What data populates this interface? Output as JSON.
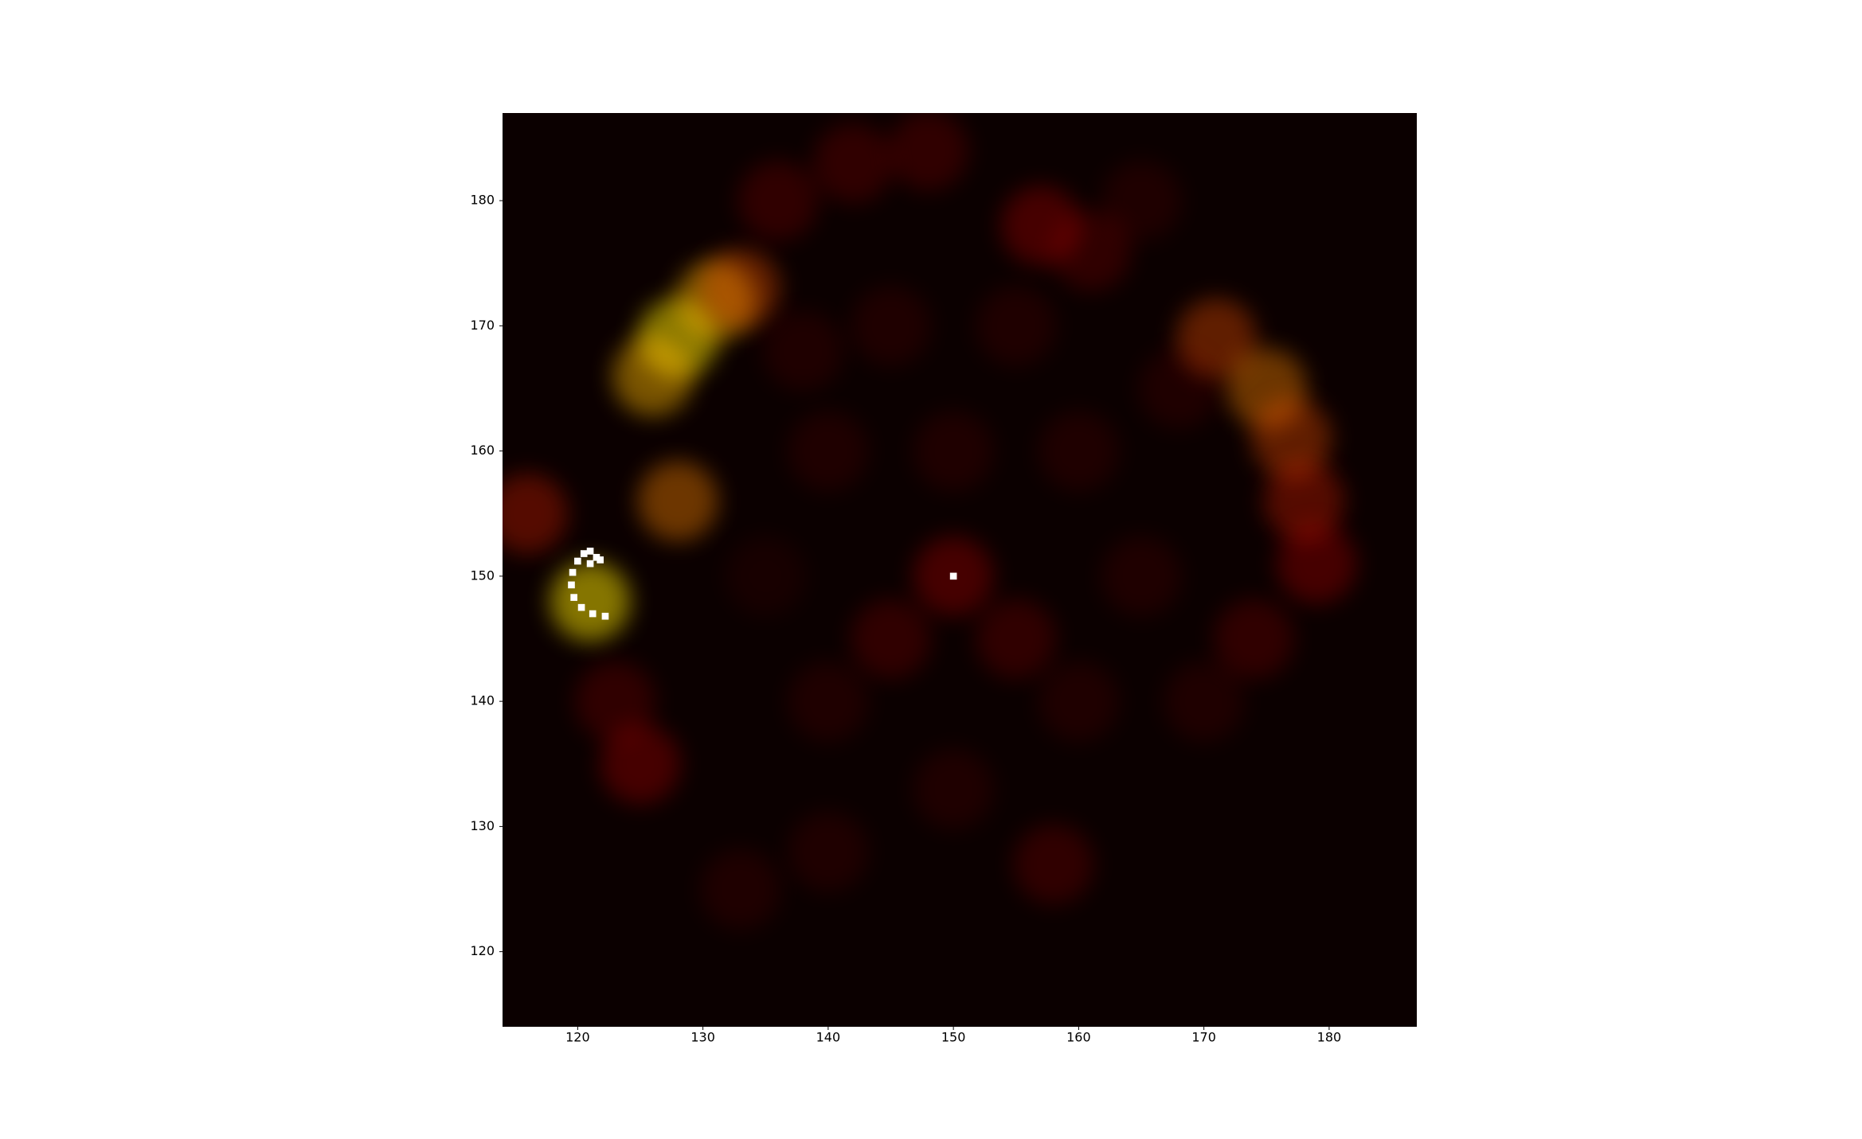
{
  "chart_data": {
    "type": "heatmap",
    "colormap": "hot",
    "x": [
      128,
      131,
      126,
      133,
      128,
      116,
      121,
      123,
      125,
      142,
      148,
      136,
      157,
      161,
      165,
      171,
      175,
      177,
      178,
      179,
      174,
      170,
      158,
      150,
      140,
      133,
      150,
      145,
      155,
      150,
      160,
      140,
      145,
      155,
      140,
      160,
      165,
      135,
      168,
      138,
      121.5,
      121,
      120.5,
      120,
      119.6,
      119.5,
      119.7,
      120.3,
      121.2,
      122.2,
      121.8,
      121,
      150
    ],
    "y": [
      169,
      172,
      166,
      173,
      156,
      155,
      148,
      140,
      135,
      183,
      184,
      180,
      178,
      176,
      180,
      169,
      165,
      161,
      156,
      151,
      145,
      140,
      127,
      133,
      128,
      125,
      150,
      145,
      145,
      160,
      160,
      160,
      170,
      170,
      140,
      140,
      150,
      150,
      165,
      168,
      151.5,
      152,
      151.8,
      151.2,
      150.3,
      149.3,
      148.3,
      147.5,
      147,
      146.8,
      151.3,
      151,
      150
    ],
    "values": [
      0.5,
      0.45,
      0.45,
      0.35,
      0.4,
      0.3,
      0.5,
      0.2,
      0.25,
      0.2,
      0.2,
      0.2,
      0.25,
      0.2,
      0.15,
      0.35,
      0.4,
      0.35,
      0.3,
      0.25,
      0.2,
      0.15,
      0.2,
      0.15,
      0.15,
      0.15,
      0.25,
      0.2,
      0.2,
      0.15,
      0.15,
      0.15,
      0.15,
      0.15,
      0.15,
      0.15,
      0.15,
      0.12,
      0.15,
      0.15,
      1,
      1,
      1,
      1,
      1,
      1,
      1,
      1,
      1,
      1,
      1,
      1,
      1
    ],
    "xlim": [
      114,
      187
    ],
    "ylim": [
      114,
      187
    ],
    "xticks": [
      120,
      130,
      140,
      150,
      160,
      170,
      180
    ],
    "yticks": [
      120,
      130,
      140,
      150,
      160,
      170,
      180
    ]
  }
}
